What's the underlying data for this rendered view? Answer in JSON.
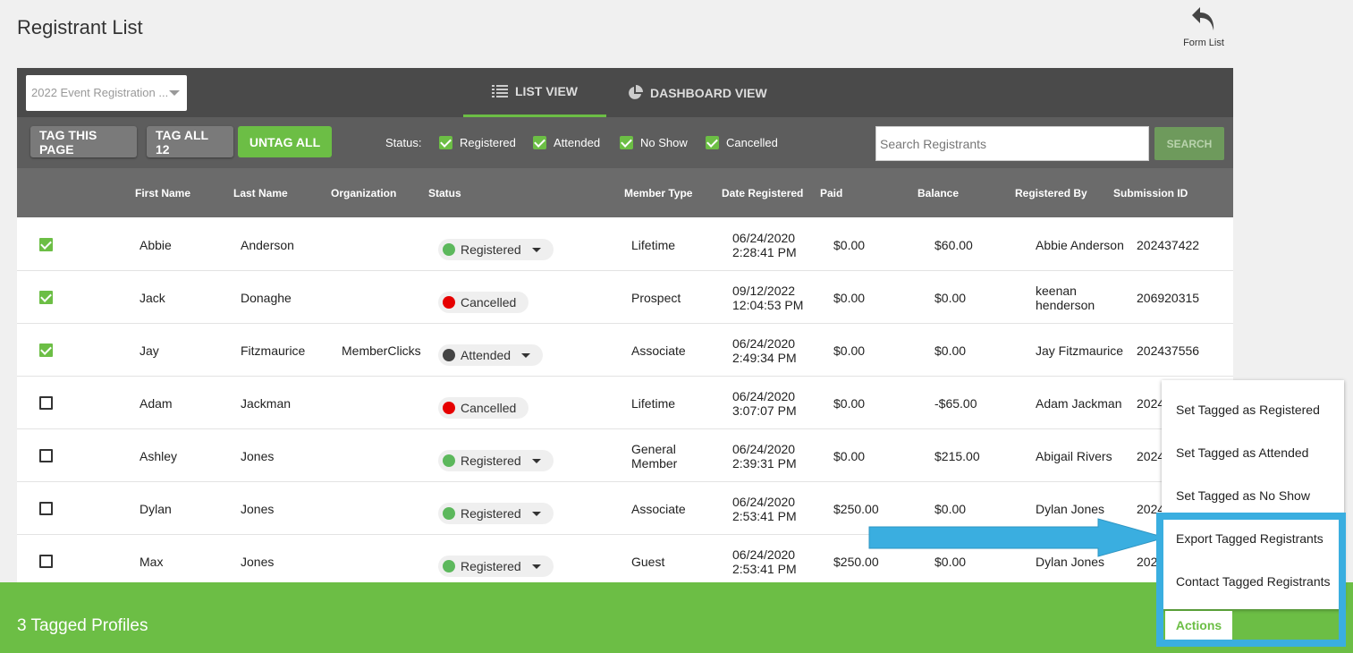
{
  "page": {
    "title": "Registrant List"
  },
  "form_list": {
    "label": "Form List",
    "icon": "undo-arrow-icon"
  },
  "form_select": {
    "value": "2022 Event Registration ..."
  },
  "view_tabs": [
    {
      "label": "LIST VIEW",
      "icon": "list-icon",
      "active": true
    },
    {
      "label": "DASHBOARD VIEW",
      "icon": "pie-chart-icon",
      "active": false
    }
  ],
  "toolbar": {
    "tag_page": "TAG THIS PAGE",
    "tag_all": "TAG ALL 12",
    "untag_all": "UNTAG ALL",
    "status_label": "Status:",
    "filters": [
      {
        "label": "Registered",
        "checked": true
      },
      {
        "label": "Attended",
        "checked": true
      },
      {
        "label": "No Show",
        "checked": true
      },
      {
        "label": "Cancelled",
        "checked": true
      }
    ],
    "search_placeholder": "Search Registrants",
    "search_button": "SEARCH"
  },
  "table": {
    "columns": [
      "First Name",
      "Last Name",
      "Organization",
      "Status",
      "Member Type",
      "Date Registered",
      "Paid",
      "Balance",
      "Registered By",
      "Submission ID"
    ],
    "rows": [
      {
        "checked": true,
        "first": "Abbie",
        "last": "Anderson",
        "org": "",
        "status": "Registered",
        "status_color": "#5cb85c",
        "dropdown": true,
        "member_type": [
          "Lifetime"
        ],
        "date": [
          "06/24/2020",
          "2:28:41 PM"
        ],
        "paid": "$0.00",
        "balance": "$60.00",
        "registered_by": [
          "Abbie Anderson"
        ],
        "submission_id": "202437422"
      },
      {
        "checked": true,
        "first": "Jack",
        "last": "Donaghe",
        "org": "",
        "status": "Cancelled",
        "status_color": "#e60000",
        "dropdown": false,
        "member_type": [
          "Prospect"
        ],
        "date": [
          "09/12/2022",
          "12:04:53 PM"
        ],
        "paid": "$0.00",
        "balance": "$0.00",
        "registered_by": [
          "keenan",
          "henderson"
        ],
        "submission_id": "206920315"
      },
      {
        "checked": true,
        "first": "Jay",
        "last": "Fitzmaurice",
        "org": "MemberClicks",
        "status": "Attended",
        "status_color": "#444444",
        "dropdown": true,
        "member_type": [
          "Associate"
        ],
        "date": [
          "06/24/2020",
          "2:49:34 PM"
        ],
        "paid": "$0.00",
        "balance": "$0.00",
        "registered_by": [
          "Jay Fitzmaurice"
        ],
        "submission_id": "202437556"
      },
      {
        "checked": false,
        "first": "Adam",
        "last": "Jackman",
        "org": "",
        "status": "Cancelled",
        "status_color": "#e60000",
        "dropdown": false,
        "member_type": [
          "Lifetime"
        ],
        "date": [
          "06/24/2020",
          "3:07:07 PM"
        ],
        "paid": "$0.00",
        "balance": "-$65.00",
        "registered_by": [
          "Adam Jackman"
        ],
        "submission_id": "2024"
      },
      {
        "checked": false,
        "first": "Ashley",
        "last": "Jones",
        "org": "",
        "status": "Registered",
        "status_color": "#5cb85c",
        "dropdown": true,
        "member_type": [
          "General",
          "Member"
        ],
        "date": [
          "06/24/2020",
          "2:39:31 PM"
        ],
        "paid": "$0.00",
        "balance": "$215.00",
        "registered_by": [
          "Abigail Rivers"
        ],
        "submission_id": "2024"
      },
      {
        "checked": false,
        "first": "Dylan",
        "last": "Jones",
        "org": "",
        "status": "Registered",
        "status_color": "#5cb85c",
        "dropdown": true,
        "member_type": [
          "Associate"
        ],
        "date": [
          "06/24/2020",
          "2:53:41 PM"
        ],
        "paid": "$250.00",
        "balance": "$0.00",
        "registered_by": [
          "Dylan Jones"
        ],
        "submission_id": "2024"
      },
      {
        "checked": false,
        "first": "Max",
        "last": "Jones",
        "org": "",
        "status": "Registered",
        "status_color": "#5cb85c",
        "dropdown": true,
        "member_type": [
          "Guest"
        ],
        "date": [
          "06/24/2020",
          "2:53:41 PM"
        ],
        "paid": "$250.00",
        "balance": "$0.00",
        "registered_by": [
          "Dylan Jones"
        ],
        "submission_id": "202"
      }
    ]
  },
  "footer": {
    "tagged_text": "3 Tagged Profiles",
    "actions_label": "Actions"
  },
  "actions_menu": [
    "Set Tagged as Registered",
    "Set Tagged as Attended",
    "Set Tagged as No Show",
    "Export Tagged Registrants",
    "Contact Tagged Registrants"
  ],
  "colors": {
    "accent_green": "#6cbe45",
    "header_dark": "#4a4a4a",
    "toolbar": "#5d5d5d",
    "column_header": "#6b6b6b",
    "callout_blue": "#3aaee0"
  }
}
